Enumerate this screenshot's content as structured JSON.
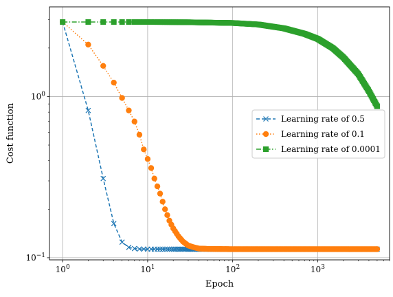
{
  "chart_data": {
    "type": "line",
    "title": "",
    "xlabel": "Epoch",
    "ylabel": "Cost function",
    "xscale": "log",
    "yscale": "log",
    "xlim": [
      0.7,
      7000
    ],
    "ylim": [
      0.097,
      3.6
    ],
    "grid": true,
    "legend_position": "center-right",
    "x_major_ticks": [
      {
        "value": 1,
        "base": "10",
        "exp": "0"
      },
      {
        "value": 10,
        "base": "10",
        "exp": "1"
      },
      {
        "value": 100,
        "base": "10",
        "exp": "2"
      },
      {
        "value": 1000,
        "base": "10",
        "exp": "3"
      }
    ],
    "y_major_ticks": [
      {
        "value": 0.1,
        "base": "10",
        "exp": "−1"
      },
      {
        "value": 1,
        "base": "10",
        "exp": "0"
      }
    ],
    "series": [
      {
        "name": "Learning rate of 0.5",
        "color": "#1f77b4",
        "marker": "x",
        "linestyle": "dashed",
        "points": [
          [
            1,
            2.9
          ],
          [
            2,
            0.82
          ],
          [
            3,
            0.31
          ],
          [
            4,
            0.163
          ],
          [
            5,
            0.125
          ],
          [
            6,
            0.116
          ],
          [
            7,
            0.114
          ],
          [
            8,
            0.1133
          ],
          [
            10,
            0.113
          ],
          [
            20,
            0.113
          ],
          [
            50,
            0.113
          ],
          [
            100,
            0.113
          ],
          [
            1000,
            0.113
          ],
          [
            5000,
            0.113
          ]
        ]
      },
      {
        "name": "Learning rate of 0.1",
        "color": "#ff7f0e",
        "marker": "o",
        "linestyle": "dotted",
        "points": [
          [
            1,
            2.9
          ],
          [
            2,
            2.1
          ],
          [
            3,
            1.55
          ],
          [
            4,
            1.22
          ],
          [
            5,
            0.98
          ],
          [
            6,
            0.82
          ],
          [
            7,
            0.7
          ],
          [
            8,
            0.58
          ],
          [
            9,
            0.47
          ],
          [
            10,
            0.41
          ],
          [
            11,
            0.36
          ],
          [
            12,
            0.31
          ],
          [
            14,
            0.25
          ],
          [
            16,
            0.2
          ],
          [
            18,
            0.17
          ],
          [
            20,
            0.152
          ],
          [
            23,
            0.136
          ],
          [
            26,
            0.126
          ],
          [
            30,
            0.119
          ],
          [
            35,
            0.116
          ],
          [
            40,
            0.114
          ],
          [
            50,
            0.1135
          ],
          [
            100,
            0.113
          ],
          [
            1000,
            0.113
          ],
          [
            5000,
            0.113
          ]
        ]
      },
      {
        "name": "Learning rate of 0.0001",
        "color": "#2ca02c",
        "marker": "s",
        "linestyle": "dashdot",
        "points": [
          [
            1,
            2.9
          ],
          [
            2,
            2.9
          ],
          [
            3,
            2.9
          ],
          [
            5,
            2.9
          ],
          [
            10,
            2.9
          ],
          [
            30,
            2.89
          ],
          [
            100,
            2.86
          ],
          [
            200,
            2.8
          ],
          [
            400,
            2.65
          ],
          [
            700,
            2.45
          ],
          [
            1000,
            2.28
          ],
          [
            1500,
            2.0
          ],
          [
            2000,
            1.75
          ],
          [
            3000,
            1.38
          ],
          [
            4000,
            1.08
          ],
          [
            5000,
            0.87
          ]
        ]
      }
    ]
  }
}
